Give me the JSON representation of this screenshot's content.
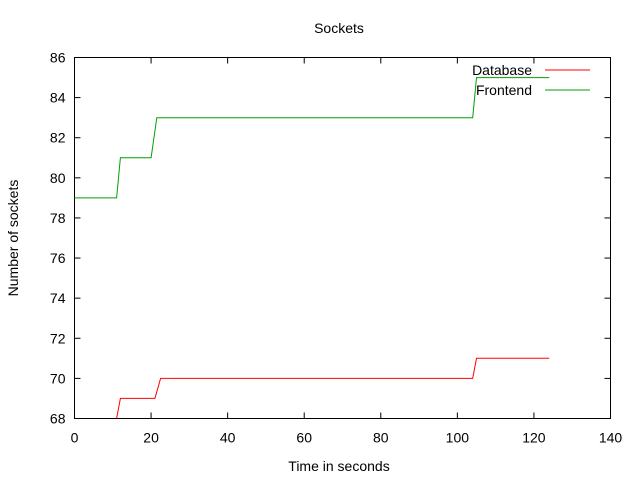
{
  "chart_data": {
    "type": "line",
    "title": "Sockets",
    "xlabel": "Time in seconds",
    "ylabel": "Number of sockets",
    "xlim": [
      0,
      140
    ],
    "ylim": [
      68,
      86
    ],
    "xticks": [
      0,
      20,
      40,
      60,
      80,
      100,
      120,
      140
    ],
    "yticks": [
      68,
      70,
      72,
      74,
      76,
      78,
      80,
      82,
      84,
      86
    ],
    "grid": false,
    "legend": "top-right",
    "step": true,
    "series": [
      {
        "name": "Database",
        "color": "#ff0000",
        "points": [
          [
            11,
            68
          ],
          [
            12,
            69
          ],
          [
            21,
            69
          ],
          [
            22.5,
            70
          ],
          [
            104,
            70
          ],
          [
            105,
            71
          ],
          [
            124,
            71
          ]
        ]
      },
      {
        "name": "Frontend",
        "color": "#00a000",
        "points": [
          [
            0,
            79
          ],
          [
            11,
            79
          ],
          [
            12,
            81
          ],
          [
            20,
            81
          ],
          [
            21.5,
            83
          ],
          [
            104,
            83
          ],
          [
            105,
            85
          ],
          [
            124,
            85
          ]
        ]
      }
    ]
  }
}
